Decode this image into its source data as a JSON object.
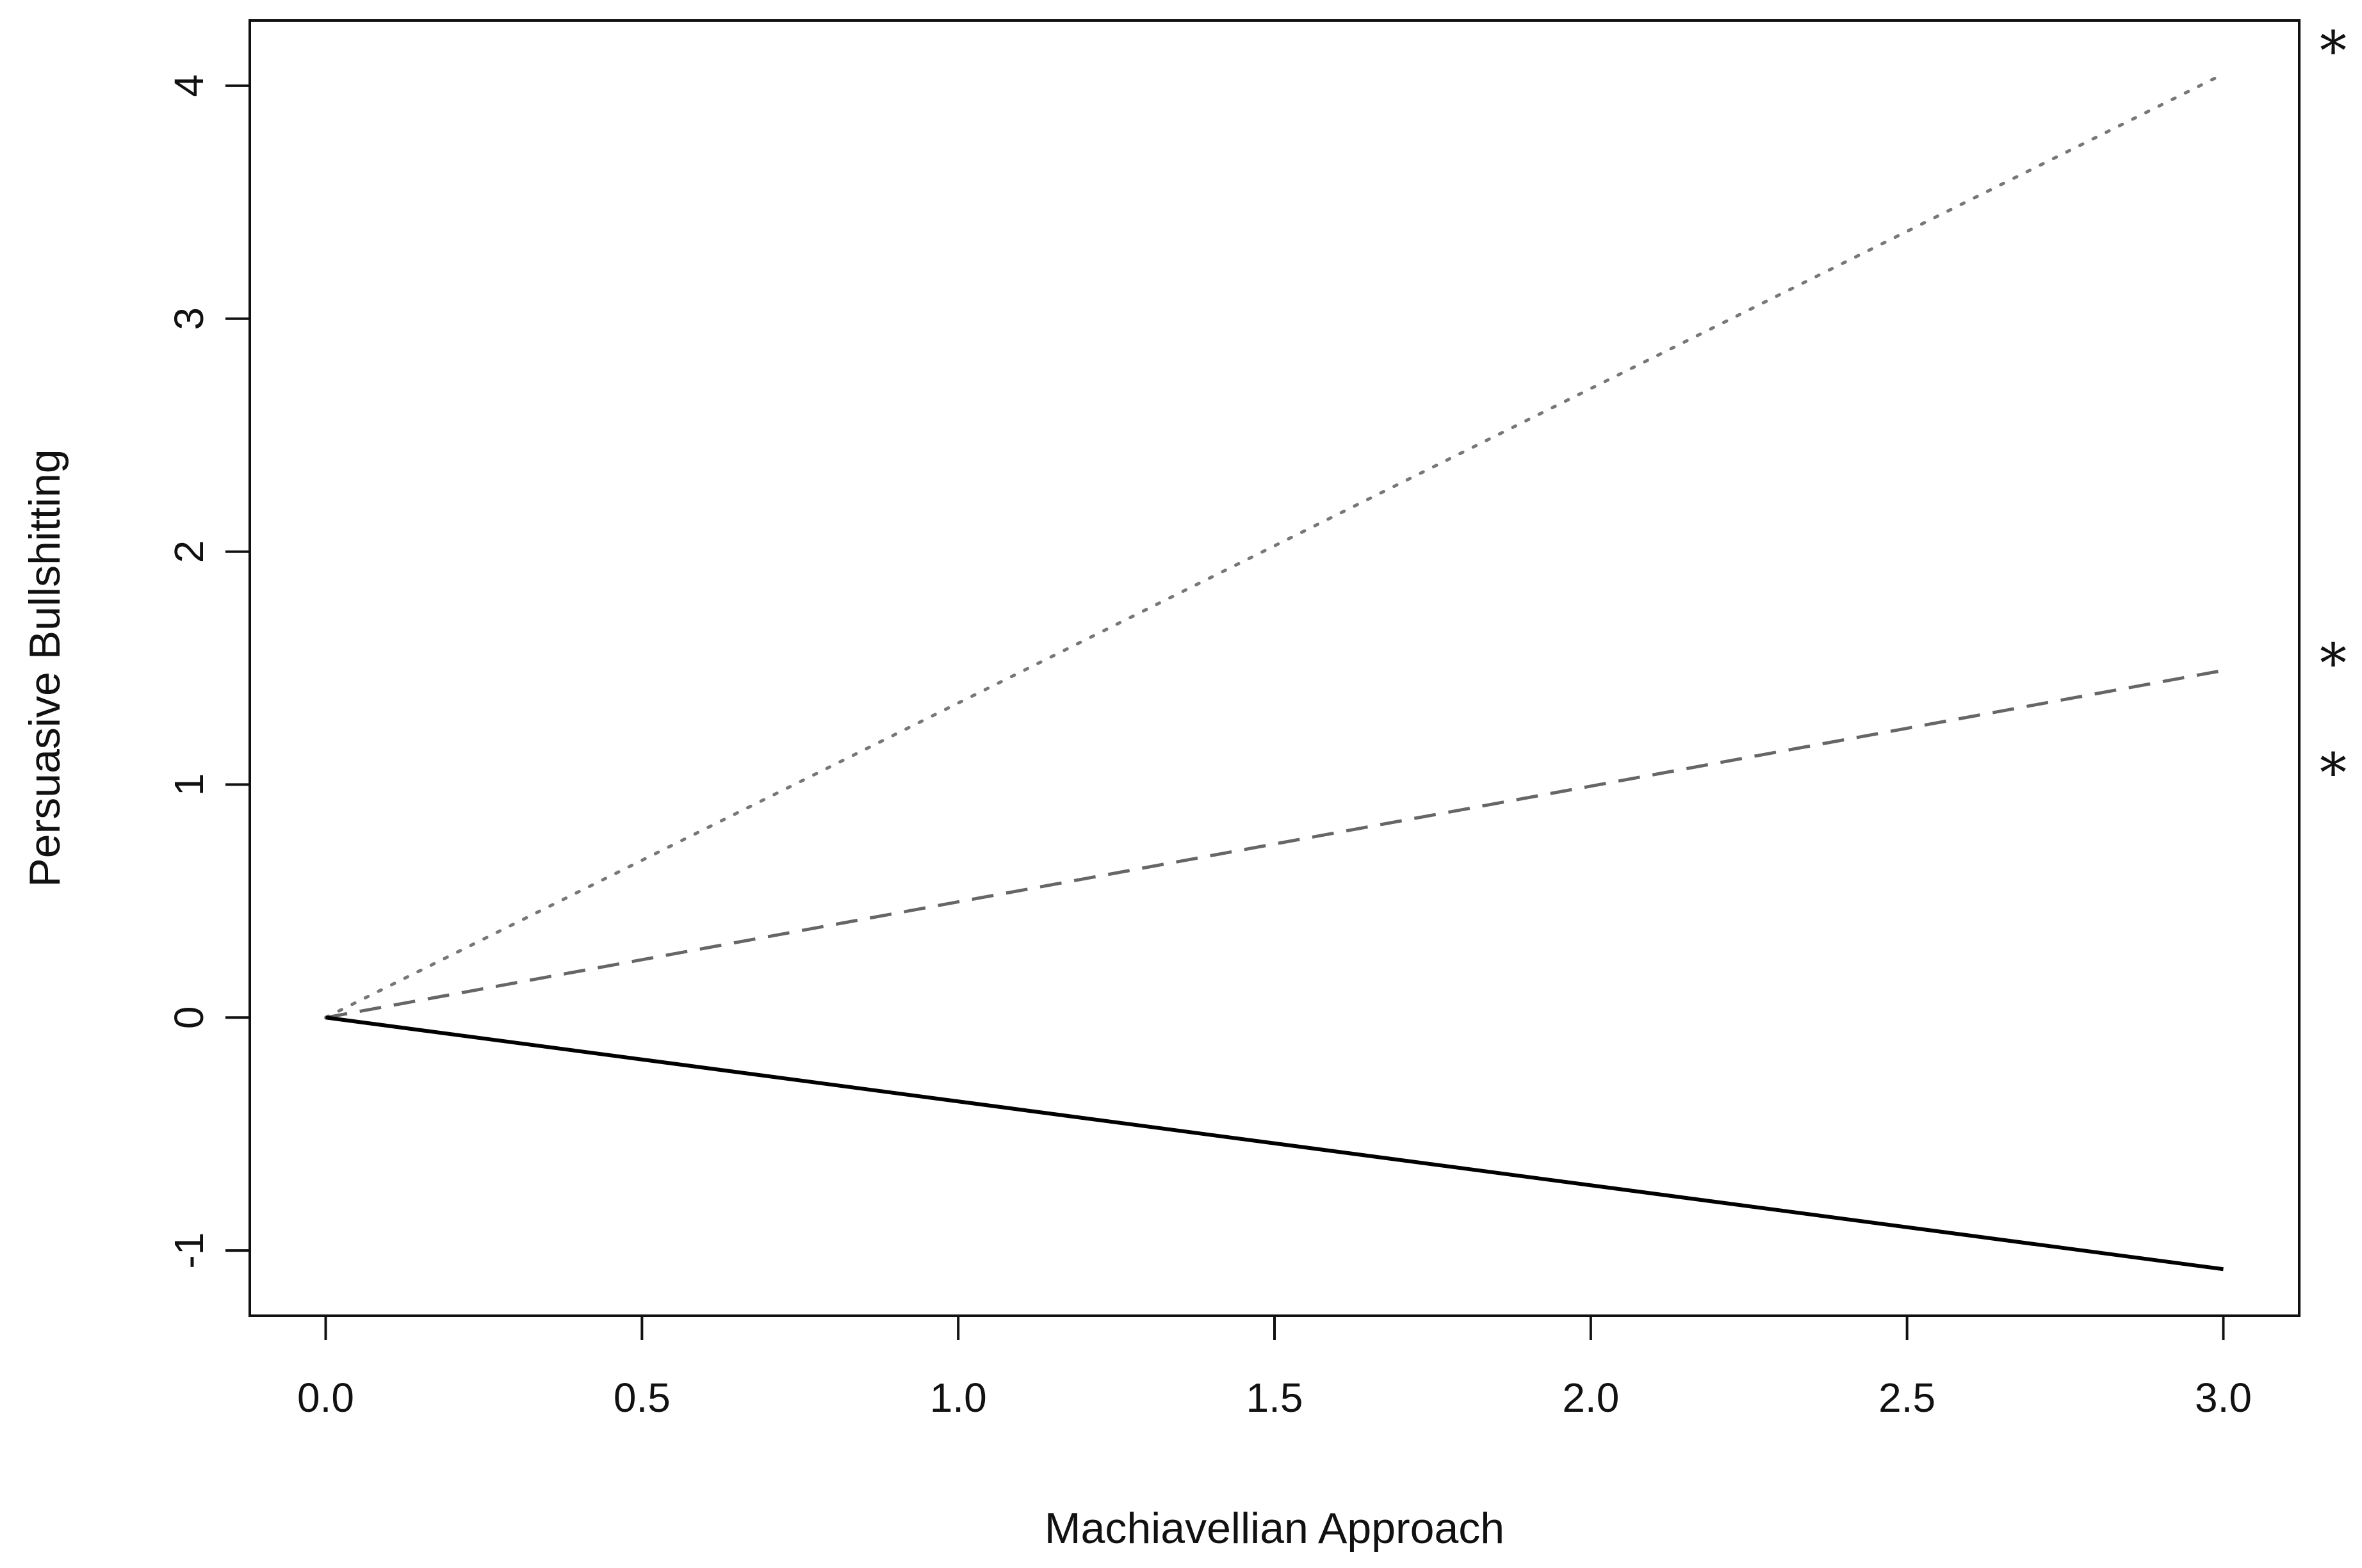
{
  "chart_data": {
    "type": "line",
    "title": "",
    "xlabel": "Machiavellian Approach",
    "ylabel": "Persuasive Bullshitting",
    "xlim": [
      -0.12,
      3.12
    ],
    "ylim": [
      -1.28,
      4.28
    ],
    "x_ticks": [
      0.0,
      0.5,
      1.0,
      1.5,
      2.0,
      2.5,
      3.0
    ],
    "x_tick_labels": [
      "0.0",
      "0.5",
      "1.0",
      "1.5",
      "2.0",
      "2.5",
      "3.0"
    ],
    "y_ticks": [
      -1,
      0,
      1,
      2,
      3,
      4
    ],
    "y_tick_labels": [
      "-1",
      "0",
      "1",
      "2",
      "3",
      "4"
    ],
    "grid": false,
    "legend": "none",
    "series": [
      {
        "style": "dotted",
        "color": "#777777",
        "x": [
          0,
          3
        ],
        "y": [
          0,
          4.05
        ]
      },
      {
        "style": "dashed",
        "color": "#666666",
        "x": [
          0,
          3
        ],
        "y": [
          0,
          1.49
        ]
      },
      {
        "style": "solid",
        "color": "#000000",
        "x": [
          0,
          3
        ],
        "y": [
          0,
          -1.08
        ]
      }
    ],
    "annotations": [
      {
        "text": "*",
        "y": 4.15
      },
      {
        "text": "*",
        "y": 1.52
      },
      {
        "text": "*",
        "y": 1.05
      }
    ]
  }
}
